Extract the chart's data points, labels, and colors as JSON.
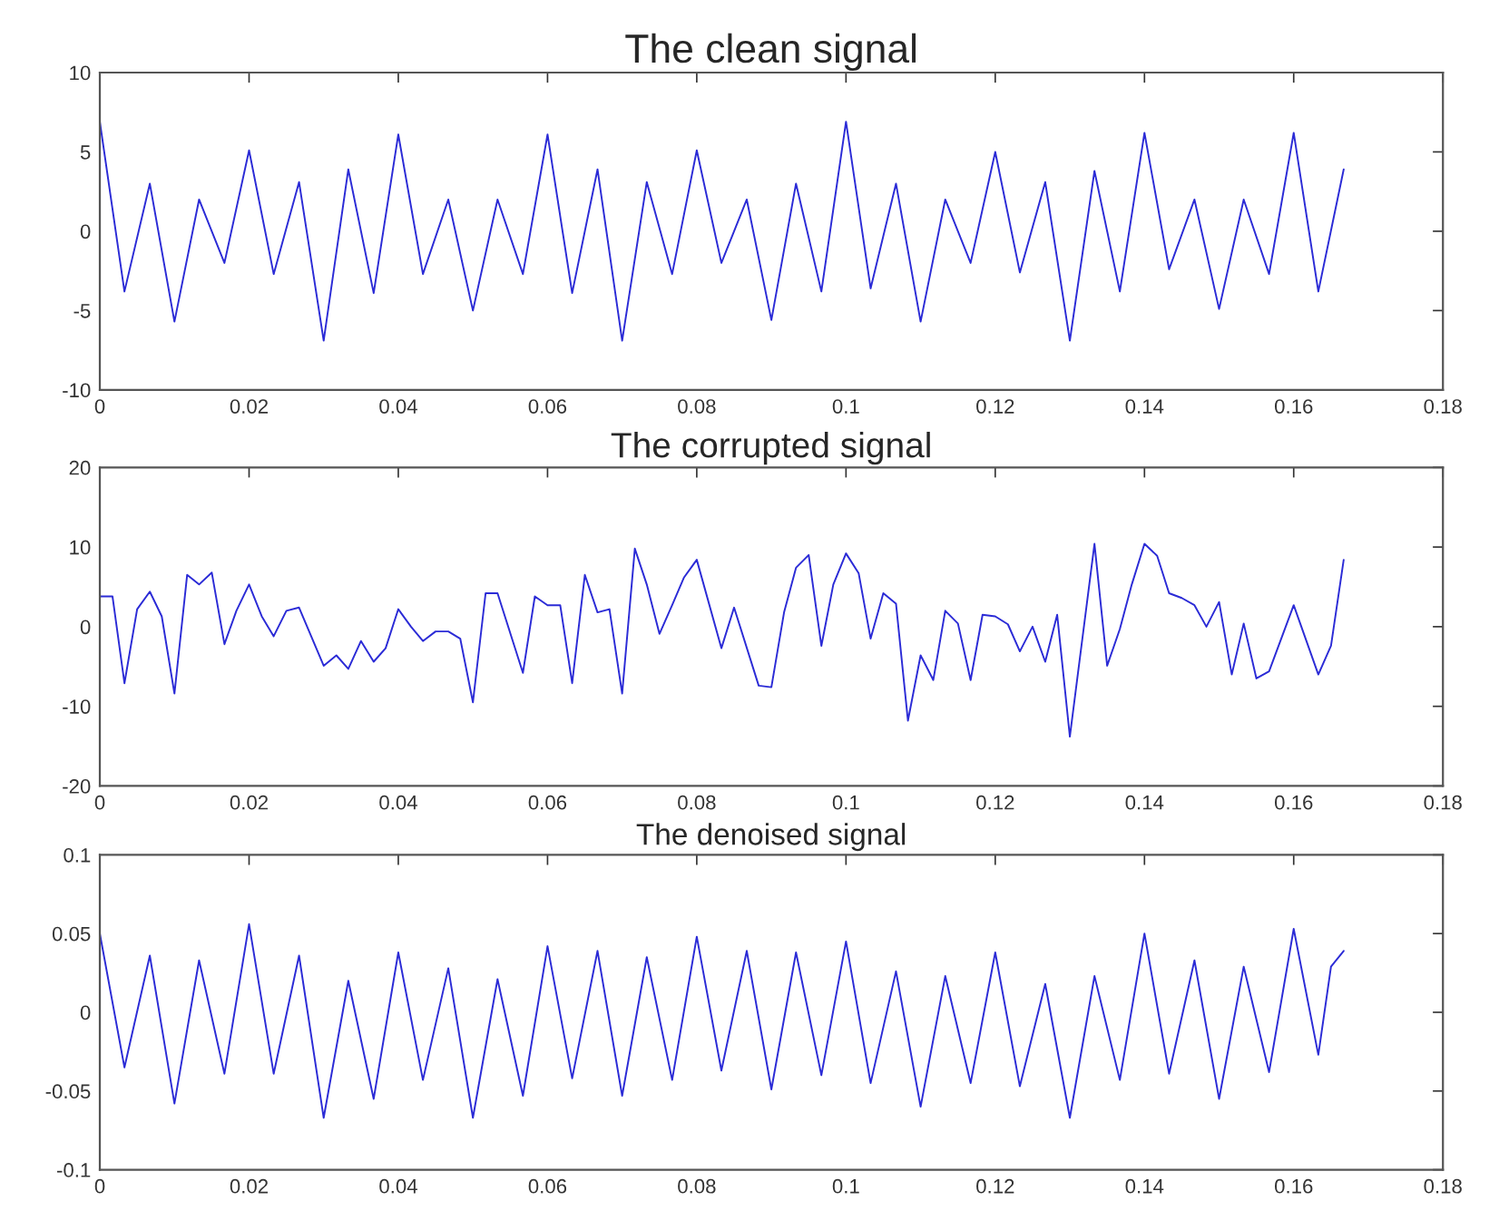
{
  "chart_data": [
    {
      "type": "line",
      "title": "The clean signal",
      "xlim": [
        0,
        0.18
      ],
      "xticks": [
        0,
        0.02,
        0.04,
        0.06,
        0.08,
        0.1,
        0.12,
        0.14,
        0.16,
        0.18
      ],
      "ylim": [
        -10,
        10
      ],
      "yticks": [
        -10,
        -5,
        0,
        5,
        10
      ],
      "grid": false,
      "series": [
        {
          "color": "#2b2bd6",
          "x": [
            0,
            0.0033,
            0.0067,
            0.01,
            0.0133,
            0.0167,
            0.02,
            0.0233,
            0.0267,
            0.03,
            0.0333,
            0.0367,
            0.04,
            0.0433,
            0.0467,
            0.05,
            0.0533,
            0.0567,
            0.06,
            0.0633,
            0.0667,
            0.07,
            0.0733,
            0.0767,
            0.08,
            0.0833,
            0.0867,
            0.09,
            0.0933,
            0.0967,
            0.1,
            0.1033,
            0.1067,
            0.11,
            0.1133,
            0.1167,
            0.12,
            0.1233,
            0.1267,
            0.13,
            0.1333,
            0.1367,
            0.14,
            0.1433,
            0.1467,
            0.15,
            0.1533,
            0.1567,
            0.16,
            0.1633,
            0.1667
          ],
          "values": [
            6.9,
            -3.8,
            3.0,
            -5.7,
            2.0,
            -2.0,
            5.1,
            -2.7,
            3.1,
            -6.9,
            3.9,
            -3.9,
            6.1,
            -2.7,
            2.0,
            -5.0,
            2.0,
            -2.7,
            6.1,
            -3.9,
            3.9,
            -6.9,
            3.1,
            -2.7,
            5.1,
            -2.0,
            2.0,
            -5.6,
            3.0,
            -3.8,
            6.9,
            -3.6,
            3.0,
            -5.7,
            2.0,
            -2.0,
            5.0,
            -2.6,
            3.1,
            -6.9,
            3.8,
            -3.8,
            6.2,
            -2.4,
            2.0,
            -4.9,
            2.0,
            -2.7,
            6.2,
            -3.8,
            3.9
          ]
        }
      ]
    },
    {
      "type": "line",
      "title": "The corrupted signal",
      "xlim": [
        0,
        0.18
      ],
      "xticks": [
        0,
        0.02,
        0.04,
        0.06,
        0.08,
        0.1,
        0.12,
        0.14,
        0.16,
        0.18
      ],
      "ylim": [
        -20,
        20
      ],
      "yticks": [
        -20,
        -10,
        0,
        10,
        20
      ],
      "grid": false,
      "series": [
        {
          "color": "#2b2bd6",
          "x": [
            0,
            0.0017,
            0.0033,
            0.005,
            0.0067,
            0.0083,
            0.01,
            0.0117,
            0.0133,
            0.015,
            0.0167,
            0.0183,
            0.02,
            0.0217,
            0.0233,
            0.025,
            0.0267,
            0.03,
            0.0317,
            0.0333,
            0.035,
            0.0367,
            0.0383,
            0.04,
            0.0417,
            0.0433,
            0.045,
            0.0467,
            0.0483,
            0.05,
            0.0517,
            0.0533,
            0.0567,
            0.0583,
            0.06,
            0.0617,
            0.0633,
            0.065,
            0.0667,
            0.0683,
            0.07,
            0.0717,
            0.0733,
            0.075,
            0.0767,
            0.0783,
            0.08,
            0.0833,
            0.085,
            0.0883,
            0.09,
            0.0917,
            0.0933,
            0.095,
            0.0967,
            0.0983,
            0.1,
            0.1017,
            0.1033,
            0.105,
            0.1067,
            0.1083,
            0.11,
            0.1117,
            0.1133,
            0.115,
            0.1167,
            0.1183,
            0.12,
            0.1217,
            0.1233,
            0.125,
            0.1267,
            0.1283,
            0.13,
            0.1333,
            0.135,
            0.1367,
            0.1383,
            0.14,
            0.1417,
            0.1433,
            0.145,
            0.1467,
            0.1483,
            0.15,
            0.1517,
            0.1533,
            0.155,
            0.1567,
            0.16,
            0.1633,
            0.165,
            0.1667
          ],
          "values": [
            3.8,
            3.8,
            -7.1,
            2.2,
            4.4,
            1.3,
            -8.4,
            6.5,
            5.3,
            6.8,
            -2.2,
            2.0,
            5.3,
            1.3,
            -1.2,
            2.0,
            2.4,
            -4.9,
            -3.6,
            -5.3,
            -1.8,
            -4.4,
            -2.7,
            2.2,
            0,
            -1.8,
            -0.6,
            -0.6,
            -1.5,
            -9.5,
            4.2,
            4.2,
            -5.8,
            3.8,
            2.7,
            2.7,
            -7.1,
            6.5,
            1.8,
            2.2,
            -8.4,
            9.8,
            5.3,
            -0.9,
            2.7,
            6.2,
            8.4,
            -2.7,
            2.4,
            -7.4,
            -7.6,
            1.8,
            7.4,
            9.0,
            -2.4,
            5.3,
            9.2,
            6.7,
            -1.5,
            4.2,
            2.9,
            -11.8,
            -3.6,
            -6.7,
            2.0,
            0.4,
            -6.7,
            1.5,
            1.3,
            0.3,
            -3.1,
            0,
            -4.4,
            1.5,
            -13.8,
            10.4,
            -4.9,
            -0.3,
            5.3,
            10.4,
            8.9,
            4.2,
            3.6,
            2.7,
            0,
            3.1,
            -6.0,
            0.4,
            -6.5,
            -5.6,
            2.7,
            -6.0,
            -2.4,
            8.4
          ]
        }
      ]
    },
    {
      "type": "line",
      "title": "The denoised signal",
      "xlim": [
        0,
        0.18
      ],
      "xticks": [
        0,
        0.02,
        0.04,
        0.06,
        0.08,
        0.1,
        0.12,
        0.14,
        0.16,
        0.18
      ],
      "ylim": [
        -0.1,
        0.1
      ],
      "yticks": [
        -0.1,
        -0.05,
        0,
        0.05,
        0.1
      ],
      "grid": false,
      "series": [
        {
          "color": "#2b2bd6",
          "x": [
            0,
            0.0033,
            0.0067,
            0.01,
            0.0133,
            0.0167,
            0.02,
            0.0233,
            0.0267,
            0.03,
            0.0333,
            0.0367,
            0.04,
            0.0433,
            0.0467,
            0.05,
            0.0533,
            0.0567,
            0.06,
            0.0633,
            0.0667,
            0.07,
            0.0733,
            0.0767,
            0.08,
            0.0833,
            0.0867,
            0.09,
            0.0933,
            0.0967,
            0.1,
            0.1033,
            0.1067,
            0.11,
            0.1133,
            0.1167,
            0.12,
            0.1233,
            0.1267,
            0.13,
            0.1333,
            0.1367,
            0.14,
            0.1433,
            0.1467,
            0.15,
            0.1533,
            0.1567,
            0.16,
            0.1633,
            0.165,
            0.1667
          ],
          "values": [
            0.05,
            -0.035,
            0.036,
            -0.058,
            0.033,
            -0.039,
            0.056,
            -0.039,
            0.036,
            -0.067,
            0.02,
            -0.055,
            0.038,
            -0.043,
            0.028,
            -0.067,
            0.021,
            -0.053,
            0.042,
            -0.042,
            0.039,
            -0.053,
            0.035,
            -0.043,
            0.048,
            -0.037,
            0.039,
            -0.049,
            0.038,
            -0.04,
            0.045,
            -0.045,
            0.026,
            -0.06,
            0.023,
            -0.045,
            0.038,
            -0.047,
            0.018,
            -0.067,
            0.023,
            -0.043,
            0.05,
            -0.039,
            0.033,
            -0.055,
            0.029,
            -0.038,
            0.053,
            -0.027,
            0.029,
            0.039
          ]
        }
      ]
    }
  ]
}
